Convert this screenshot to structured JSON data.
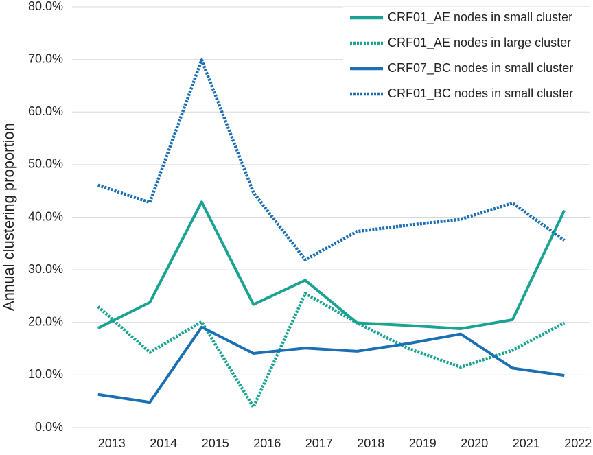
{
  "chart_data": {
    "type": "line",
    "y_label": "Annual clustering proportion",
    "categories": [
      "2013",
      "2014",
      "2015",
      "2016",
      "2017",
      "2018",
      "2019",
      "2020",
      "2021",
      "2022"
    ],
    "series": [
      {
        "name": "CRF01_AE nodes in small cluster",
        "color": "#1aa392",
        "dash": false,
        "values": [
          18.9,
          23.8,
          42.9,
          23.4,
          28.0,
          19.9,
          19.4,
          18.8,
          20.5,
          41.3
        ]
      },
      {
        "name": "CRF01_AE nodes in large cluster",
        "color": "#1aa392",
        "dash": true,
        "values": [
          23.0,
          14.3,
          20.1,
          3.9,
          25.5,
          19.9,
          15.0,
          11.5,
          14.7,
          19.9
        ]
      },
      {
        "name": "CRF07_BC nodes in small cluster",
        "color": "#1a6fb5",
        "dash": false,
        "values": [
          6.3,
          4.8,
          19.1,
          14.1,
          15.1,
          14.5,
          16.0,
          17.8,
          11.3,
          9.9
        ]
      },
      {
        "name": "CRF01_BC nodes in small cluster",
        "color": "#1a6fb5",
        "dash": true,
        "values": [
          46.1,
          42.8,
          69.9,
          44.7,
          31.9,
          37.3,
          38.5,
          39.6,
          42.7,
          35.6
        ]
      }
    ],
    "ylim": [
      0,
      80
    ],
    "yticks": [
      {
        "value": 0,
        "label": "0.0%"
      },
      {
        "value": 10,
        "label": "10.0%"
      },
      {
        "value": 20,
        "label": "20.0%"
      },
      {
        "value": 30,
        "label": "30.0%"
      },
      {
        "value": 40,
        "label": "40.0%"
      },
      {
        "value": 50,
        "label": "50.0%"
      },
      {
        "value": 60,
        "label": "60.0%"
      },
      {
        "value": 70,
        "label": "70.0%"
      },
      {
        "value": 80,
        "label": "80.0%"
      }
    ],
    "grid": true,
    "legend": "top-right"
  }
}
